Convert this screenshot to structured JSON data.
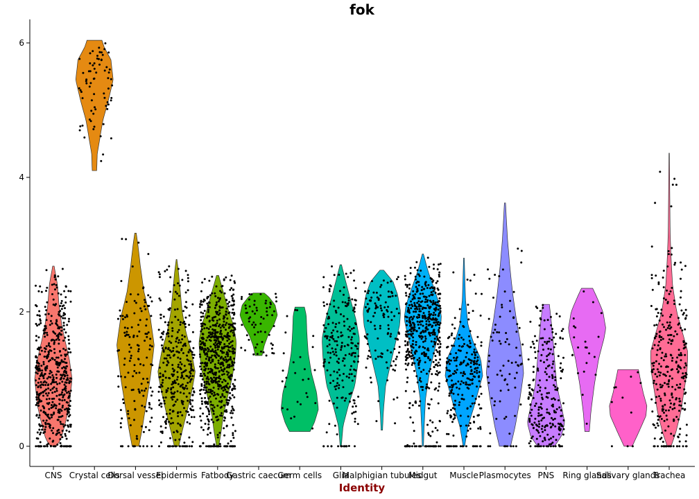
{
  "chart_data": {
    "type": "violin",
    "title": "fok",
    "xlabel": "Identity",
    "xlabel_color": "#8b0000",
    "ylabel": "",
    "ylim": [
      -0.3,
      6.35
    ],
    "yticks": [
      0,
      2,
      4,
      6
    ],
    "grid": false,
    "legend": "none",
    "categories": [
      "CNS",
      "Crystal cells",
      "Dorsal vessel",
      "Epidermis",
      "Fatbody",
      "Gastric caecum",
      "Germ cells",
      "Glia",
      "Malphigian tubules",
      "Midgut",
      "Muscle",
      "Plasmocytes",
      "PNS",
      "Ring glands",
      "Salivary glands",
      "Trachea"
    ],
    "colors": [
      "#F8766D",
      "#E58A12",
      "#CC9600",
      "#A3A500",
      "#7CAE00",
      "#39B600",
      "#00BF66",
      "#00BF96",
      "#00BFC4",
      "#00B0F6",
      "#00A5FF",
      "#8C8CFF",
      "#C77CFF",
      "#E76BF3",
      "#FF61C9",
      "#FF6C95"
    ],
    "violins": [
      {
        "min": 0.0,
        "max": 2.68,
        "profile": [
          [
            0.0,
            0.15
          ],
          [
            0.1,
            0.4
          ],
          [
            0.3,
            0.6
          ],
          [
            0.6,
            0.85
          ],
          [
            1.0,
            1.0
          ],
          [
            1.3,
            0.85
          ],
          [
            1.6,
            0.6
          ],
          [
            1.8,
            0.45
          ],
          [
            2.1,
            0.3
          ],
          [
            2.4,
            0.22
          ],
          [
            2.68,
            0.04
          ]
        ],
        "n": 520
      },
      {
        "min": 4.1,
        "max": 6.04,
        "profile": [
          [
            4.1,
            0.12
          ],
          [
            4.35,
            0.15
          ],
          [
            4.6,
            0.3
          ],
          [
            4.85,
            0.45
          ],
          [
            5.15,
            0.75
          ],
          [
            5.45,
            1.0
          ],
          [
            5.75,
            0.88
          ],
          [
            5.95,
            0.5
          ],
          [
            6.04,
            0.4
          ]
        ],
        "n": 70
      },
      {
        "min": 0.0,
        "max": 3.17,
        "profile": [
          [
            0.0,
            0.18
          ],
          [
            0.25,
            0.35
          ],
          [
            0.6,
            0.55
          ],
          [
            1.0,
            0.78
          ],
          [
            1.5,
            1.0
          ],
          [
            1.9,
            0.8
          ],
          [
            2.3,
            0.45
          ],
          [
            2.7,
            0.25
          ],
          [
            3.0,
            0.13
          ],
          [
            3.17,
            0.04
          ]
        ],
        "n": 140
      },
      {
        "min": 0.0,
        "max": 2.78,
        "profile": [
          [
            0.0,
            0.12
          ],
          [
            0.2,
            0.28
          ],
          [
            0.5,
            0.55
          ],
          [
            0.8,
            0.8
          ],
          [
            1.1,
            1.0
          ],
          [
            1.4,
            0.8
          ],
          [
            1.7,
            0.5
          ],
          [
            2.0,
            0.3
          ],
          [
            2.3,
            0.2
          ],
          [
            2.6,
            0.1
          ],
          [
            2.78,
            0.02
          ]
        ],
        "n": 320
      },
      {
        "min": 0.0,
        "max": 2.54,
        "profile": [
          [
            0.0,
            0.06
          ],
          [
            0.2,
            0.18
          ],
          [
            0.45,
            0.3
          ],
          [
            0.75,
            0.55
          ],
          [
            1.05,
            0.8
          ],
          [
            1.35,
            0.95
          ],
          [
            1.55,
            1.0
          ],
          [
            1.8,
            0.85
          ],
          [
            2.05,
            0.55
          ],
          [
            2.3,
            0.3
          ],
          [
            2.54,
            0.06
          ]
        ],
        "n": 650
      },
      {
        "min": 1.35,
        "max": 2.28,
        "profile": [
          [
            1.35,
            0.18
          ],
          [
            1.5,
            0.3
          ],
          [
            1.65,
            0.5
          ],
          [
            1.8,
            0.8
          ],
          [
            1.95,
            1.0
          ],
          [
            2.1,
            0.88
          ],
          [
            2.22,
            0.55
          ],
          [
            2.28,
            0.3
          ]
        ],
        "n": 65
      },
      {
        "min": 0.22,
        "max": 2.07,
        "profile": [
          [
            0.22,
            0.55
          ],
          [
            0.35,
            0.78
          ],
          [
            0.55,
            1.0
          ],
          [
            0.8,
            0.9
          ],
          [
            1.1,
            0.62
          ],
          [
            1.4,
            0.45
          ],
          [
            1.7,
            0.38
          ],
          [
            1.95,
            0.35
          ],
          [
            2.07,
            0.25
          ]
        ],
        "n": 28
      },
      {
        "min": 0.0,
        "max": 2.7,
        "profile": [
          [
            0.0,
            0.03
          ],
          [
            0.3,
            0.12
          ],
          [
            0.6,
            0.4
          ],
          [
            0.9,
            0.75
          ],
          [
            1.3,
            0.95
          ],
          [
            1.6,
            1.0
          ],
          [
            1.9,
            0.8
          ],
          [
            2.2,
            0.5
          ],
          [
            2.5,
            0.22
          ],
          [
            2.7,
            0.04
          ]
        ],
        "n": 200
      },
      {
        "min": 0.24,
        "max": 2.62,
        "profile": [
          [
            0.24,
            0.04
          ],
          [
            0.5,
            0.08
          ],
          [
            0.9,
            0.2
          ],
          [
            1.2,
            0.45
          ],
          [
            1.5,
            0.7
          ],
          [
            1.8,
            0.95
          ],
          [
            2.0,
            1.0
          ],
          [
            2.25,
            0.85
          ],
          [
            2.45,
            0.6
          ],
          [
            2.62,
            0.1
          ]
        ],
        "n": 120
      },
      {
        "min": 0.0,
        "max": 2.86,
        "profile": [
          [
            0.0,
            0.03
          ],
          [
            0.3,
            0.07
          ],
          [
            0.7,
            0.14
          ],
          [
            1.1,
            0.35
          ],
          [
            1.4,
            0.6
          ],
          [
            1.7,
            0.85
          ],
          [
            1.9,
            1.0
          ],
          [
            2.1,
            0.9
          ],
          [
            2.35,
            0.6
          ],
          [
            2.6,
            0.28
          ],
          [
            2.86,
            0.03
          ]
        ],
        "n": 500
      },
      {
        "min": 0.0,
        "max": 2.8,
        "profile": [
          [
            0.0,
            0.04
          ],
          [
            0.3,
            0.22
          ],
          [
            0.6,
            0.55
          ],
          [
            0.85,
            0.8
          ],
          [
            1.05,
            1.0
          ],
          [
            1.3,
            0.9
          ],
          [
            1.55,
            0.5
          ],
          [
            1.8,
            0.22
          ],
          [
            2.2,
            0.08
          ],
          [
            2.8,
            0.02
          ]
        ],
        "n": 230
      },
      {
        "min": 0.0,
        "max": 3.62,
        "profile": [
          [
            0.0,
            0.3
          ],
          [
            0.3,
            0.55
          ],
          [
            0.7,
            0.8
          ],
          [
            1.1,
            1.0
          ],
          [
            1.5,
            0.85
          ],
          [
            1.9,
            0.6
          ],
          [
            2.3,
            0.4
          ],
          [
            2.7,
            0.25
          ],
          [
            3.1,
            0.13
          ],
          [
            3.62,
            0.03
          ]
        ],
        "n": 75
      },
      {
        "min": 0.0,
        "max": 2.11,
        "profile": [
          [
            0.0,
            0.45
          ],
          [
            0.15,
            0.82
          ],
          [
            0.35,
            1.0
          ],
          [
            0.6,
            0.82
          ],
          [
            0.9,
            0.58
          ],
          [
            1.2,
            0.48
          ],
          [
            1.5,
            0.4
          ],
          [
            1.8,
            0.3
          ],
          [
            2.11,
            0.18
          ]
        ],
        "n": 230
      },
      {
        "min": 0.22,
        "max": 2.35,
        "profile": [
          [
            0.22,
            0.12
          ],
          [
            0.5,
            0.2
          ],
          [
            0.9,
            0.38
          ],
          [
            1.3,
            0.62
          ],
          [
            1.6,
            0.9
          ],
          [
            1.75,
            1.0
          ],
          [
            2.0,
            0.85
          ],
          [
            2.2,
            0.55
          ],
          [
            2.35,
            0.3
          ]
        ],
        "n": 22
      },
      {
        "min": 0.0,
        "max": 1.14,
        "profile": [
          [
            0.0,
            0.22
          ],
          [
            0.2,
            0.55
          ],
          [
            0.45,
            0.95
          ],
          [
            0.6,
            1.0
          ],
          [
            0.8,
            0.8
          ],
          [
            1.0,
            0.65
          ],
          [
            1.14,
            0.55
          ]
        ],
        "n": 8
      },
      {
        "min": 0.0,
        "max": 4.36,
        "profile": [
          [
            0.0,
            0.1
          ],
          [
            0.2,
            0.35
          ],
          [
            0.5,
            0.62
          ],
          [
            0.8,
            0.78
          ],
          [
            1.1,
            0.95
          ],
          [
            1.4,
            1.0
          ],
          [
            1.7,
            0.7
          ],
          [
            2.0,
            0.4
          ],
          [
            2.4,
            0.18
          ],
          [
            2.8,
            0.1
          ],
          [
            3.2,
            0.05
          ],
          [
            3.8,
            0.03
          ],
          [
            4.36,
            0.01
          ]
        ],
        "n": 280
      }
    ]
  }
}
